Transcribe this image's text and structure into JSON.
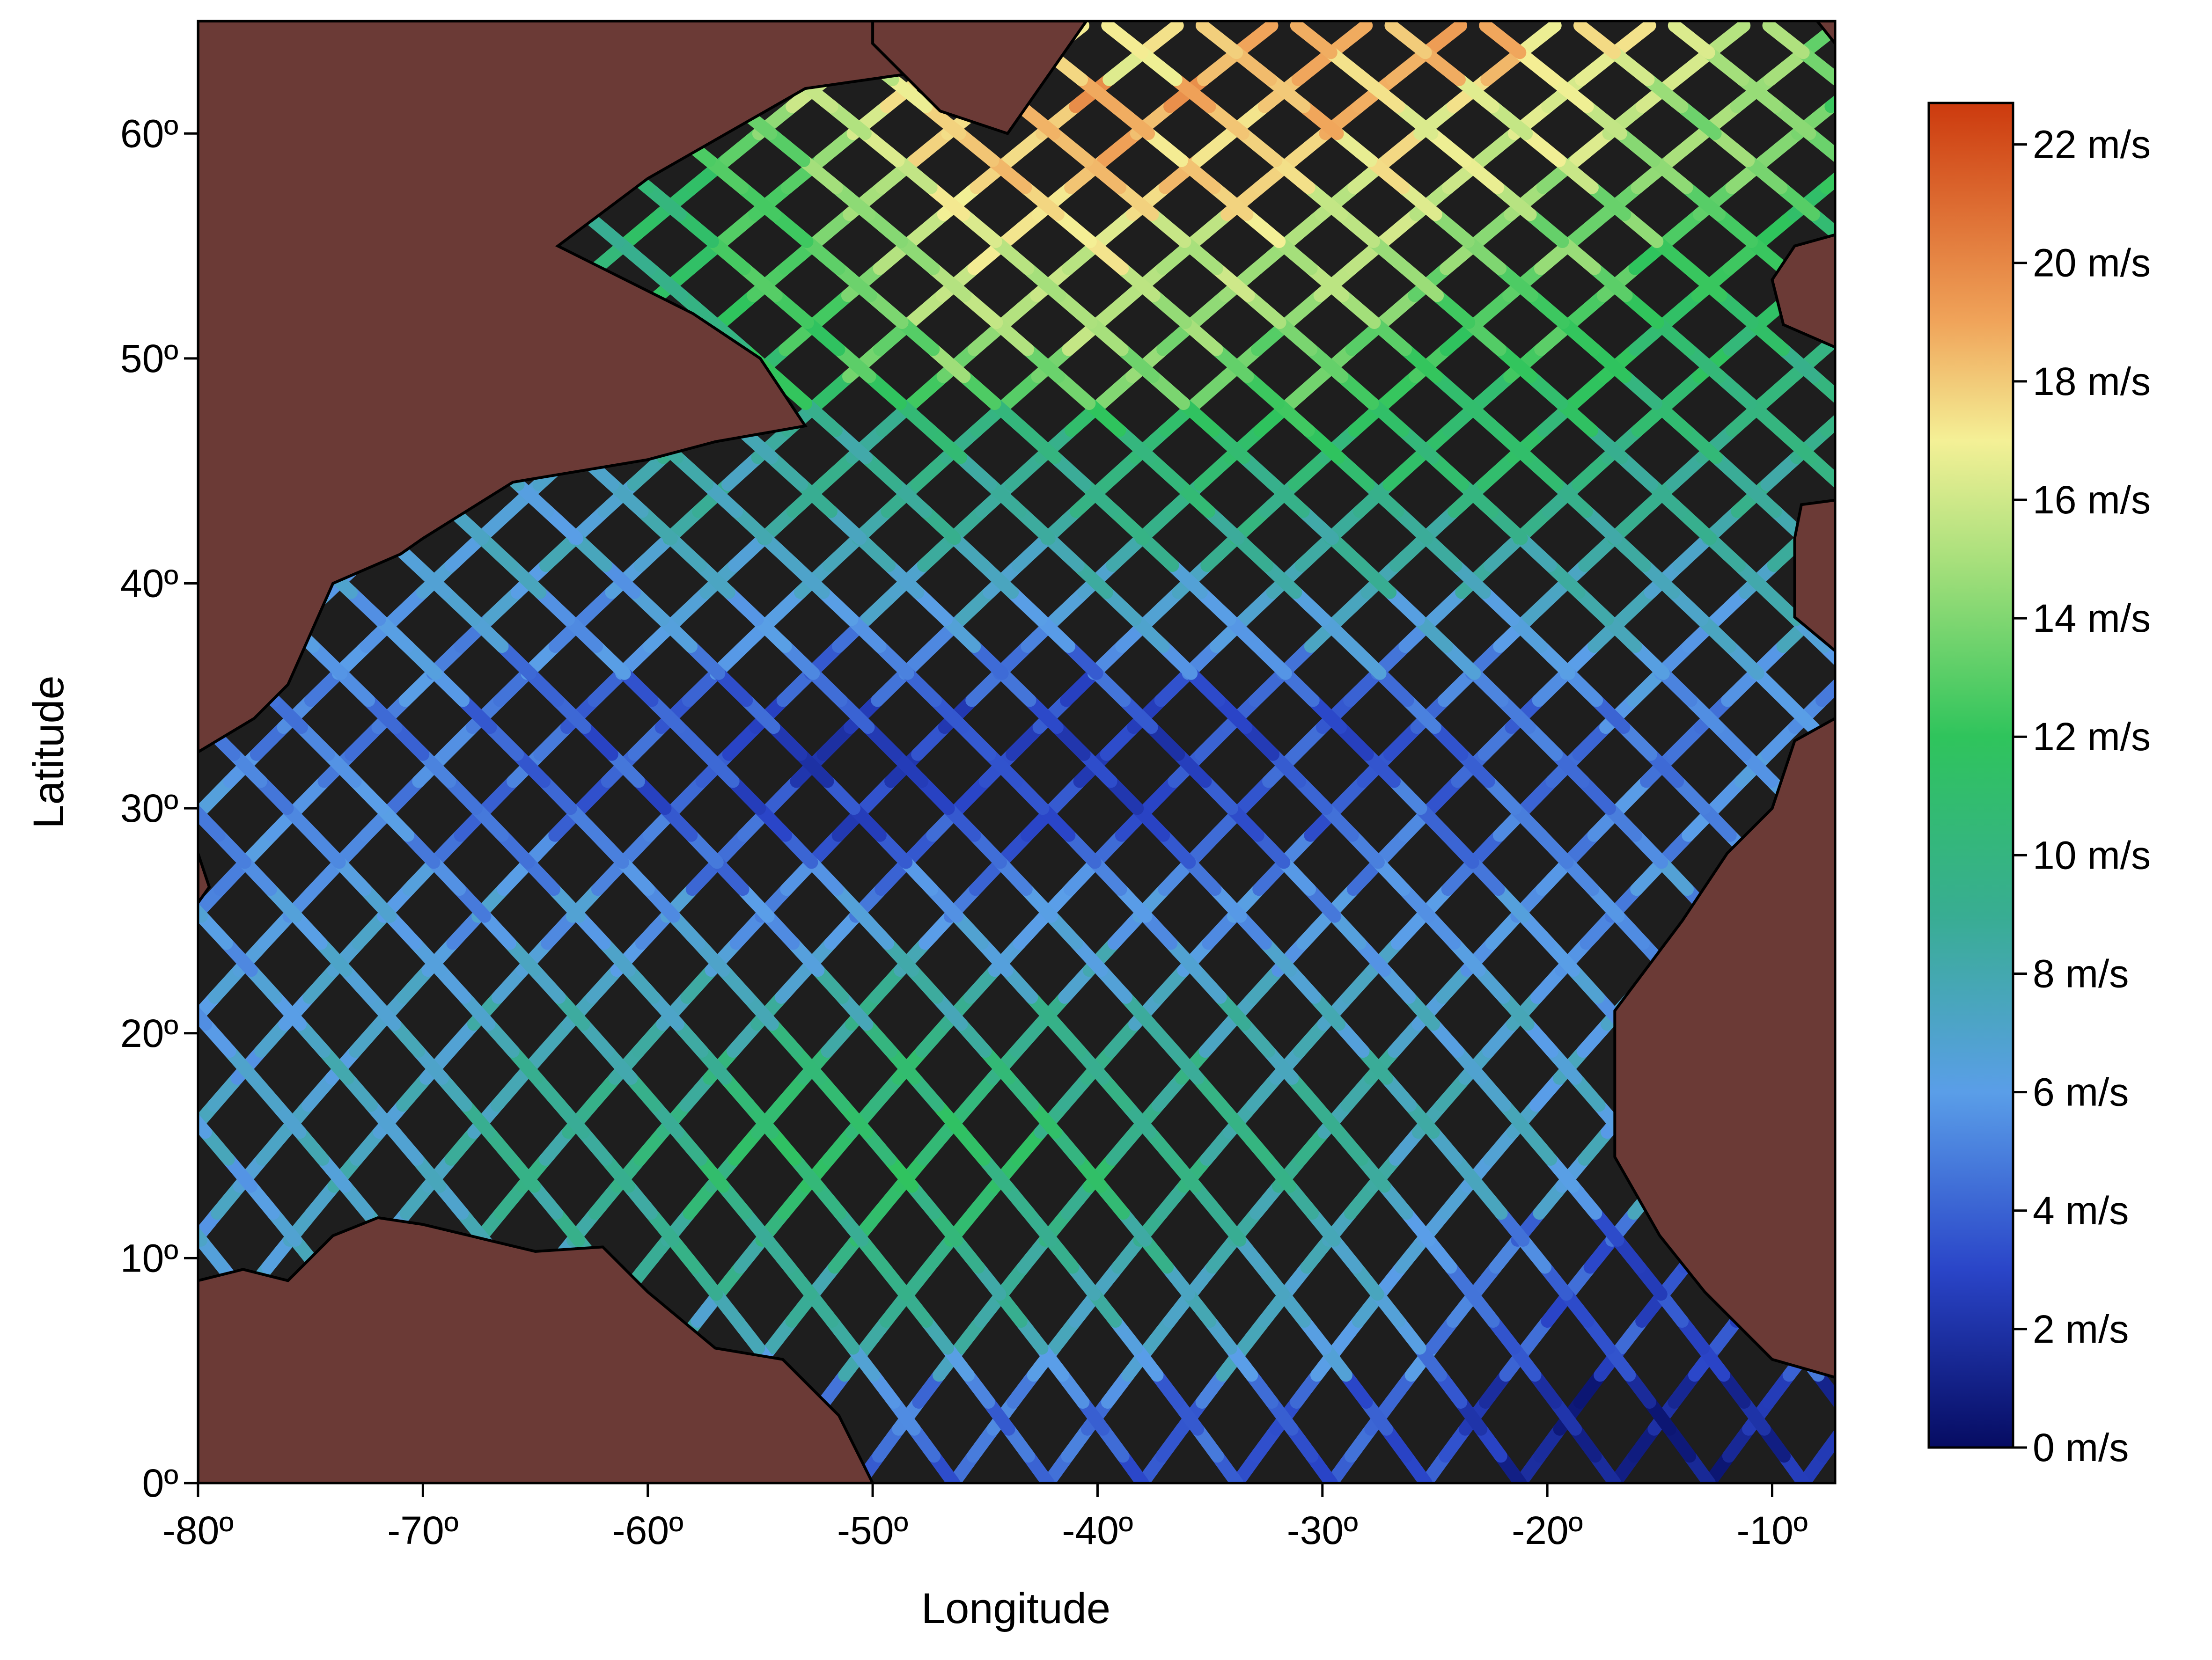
{
  "map": {
    "x_axis": {
      "title": "Longitude",
      "range": [
        -80,
        -7.2
      ],
      "ticks": [
        {
          "value": -80,
          "label": "-80º"
        },
        {
          "value": -70,
          "label": "-70º"
        },
        {
          "value": -60,
          "label": "-60º"
        },
        {
          "value": -50,
          "label": "-50º"
        },
        {
          "value": -40,
          "label": "-40º"
        },
        {
          "value": -30,
          "label": "-30º"
        },
        {
          "value": -20,
          "label": "-20º"
        },
        {
          "value": -10,
          "label": "-10º"
        }
      ]
    },
    "y_axis": {
      "title": "Latitude",
      "range": [
        0,
        65
      ],
      "ticks": [
        {
          "value": 0,
          "label": "0º"
        },
        {
          "value": 10,
          "label": "10º"
        },
        {
          "value": 20,
          "label": "20º"
        },
        {
          "value": 30,
          "label": "30º"
        },
        {
          "value": 40,
          "label": "40º"
        },
        {
          "value": 50,
          "label": "50º"
        },
        {
          "value": 60,
          "label": "60º"
        }
      ]
    },
    "colors": {
      "ocean": "#1e1e1e",
      "land": "#6b3a36",
      "coast": "#000000"
    },
    "colorbar": {
      "min": 0,
      "max": 22.7,
      "unit": "m/s",
      "ticks": [
        {
          "value": 0,
          "label": "0 m/s"
        },
        {
          "value": 2,
          "label": "2 m/s"
        },
        {
          "value": 4,
          "label": "4 m/s"
        },
        {
          "value": 6,
          "label": "6 m/s"
        },
        {
          "value": 8,
          "label": "8 m/s"
        },
        {
          "value": 10,
          "label": "10 m/s"
        },
        {
          "value": 12,
          "label": "12 m/s"
        },
        {
          "value": 14,
          "label": "14 m/s"
        },
        {
          "value": 16,
          "label": "16 m/s"
        },
        {
          "value": 18,
          "label": "18 m/s"
        },
        {
          "value": 20,
          "label": "20 m/s"
        },
        {
          "value": 22,
          "label": "22 m/s"
        }
      ],
      "stops": [
        {
          "value": 0,
          "color": "#060c62"
        },
        {
          "value": 3,
          "color": "#2a45c8"
        },
        {
          "value": 6,
          "color": "#5a9ee8"
        },
        {
          "value": 9,
          "color": "#38ad92"
        },
        {
          "value": 12,
          "color": "#2fc45c"
        },
        {
          "value": 15,
          "color": "#a9e07c"
        },
        {
          "value": 17,
          "color": "#f4f096"
        },
        {
          "value": 19,
          "color": "#f0a45a"
        },
        {
          "value": 22.7,
          "color": "#cc3a0e"
        }
      ]
    },
    "land_regions": [
      {
        "name": "north-america",
        "points": [
          [
            -80,
            65
          ],
          [
            -43.5,
            65
          ],
          [
            -46,
            63
          ],
          [
            -53,
            62
          ],
          [
            -60,
            58
          ],
          [
            -64,
            55
          ],
          [
            -58,
            52
          ],
          [
            -55,
            50
          ],
          [
            -53,
            47
          ],
          [
            -57,
            46.3
          ],
          [
            -60,
            45.5
          ],
          [
            -66,
            44.5
          ],
          [
            -70,
            42
          ],
          [
            -71,
            41.3
          ],
          [
            -74,
            40
          ],
          [
            -76,
            35.5
          ],
          [
            -77.5,
            34
          ],
          [
            -80,
            32.5
          ]
        ]
      },
      {
        "name": "florida-gulf",
        "points": [
          [
            -80,
            25.8
          ],
          [
            -79.5,
            26.5
          ],
          [
            -80,
            28
          ]
        ]
      },
      {
        "name": "south-america",
        "points": [
          [
            -80,
            0
          ],
          [
            -50,
            0
          ],
          [
            -51.5,
            3
          ],
          [
            -54,
            5.5
          ],
          [
            -57,
            6
          ],
          [
            -60,
            8.5
          ],
          [
            -62,
            10.5
          ],
          [
            -65,
            10.3
          ],
          [
            -70,
            11.5
          ],
          [
            -72,
            11.8
          ],
          [
            -74,
            11
          ],
          [
            -76,
            9
          ],
          [
            -78,
            9.5
          ],
          [
            -80,
            9
          ]
        ]
      },
      {
        "name": "africa-southwest",
        "points": [
          [
            -7.2,
            0
          ],
          [
            -7.2,
            4.7
          ],
          [
            -10,
            5.5
          ],
          [
            -13,
            8.5
          ],
          [
            -15,
            11
          ],
          [
            -17,
            14.5
          ],
          [
            -17,
            21
          ],
          [
            -14,
            25
          ],
          [
            -12,
            28
          ],
          [
            -10,
            30
          ],
          [
            -9,
            33
          ],
          [
            -7.2,
            34
          ]
        ]
      },
      {
        "name": "iberia",
        "points": [
          [
            -7.2,
            37
          ],
          [
            -9,
            38.5
          ],
          [
            -9,
            42
          ],
          [
            -8.7,
            43.5
          ],
          [
            -7.2,
            43.7
          ]
        ]
      },
      {
        "name": "british-isles",
        "points": [
          [
            -7.2,
            50.5
          ],
          [
            -9.5,
            51.5
          ],
          [
            -10,
            53.5
          ],
          [
            -9,
            55
          ],
          [
            -7.2,
            55.5
          ]
        ]
      },
      {
        "name": "greenland",
        "points": [
          [
            -40.5,
            65
          ],
          [
            -44,
            60
          ],
          [
            -47,
            61
          ],
          [
            -50,
            64
          ],
          [
            -50,
            65
          ]
        ]
      },
      {
        "name": "iceland",
        "points": [
          [
            -7.2,
            64
          ],
          [
            -7.2,
            65
          ],
          [
            -8,
            65
          ]
        ]
      }
    ],
    "swath_field": {
      "lon_range": [
        -80,
        -7.2
      ],
      "lat_range": [
        0,
        65
      ],
      "track_spacing_deg": 4.2,
      "description_note": ""
    }
  }
}
